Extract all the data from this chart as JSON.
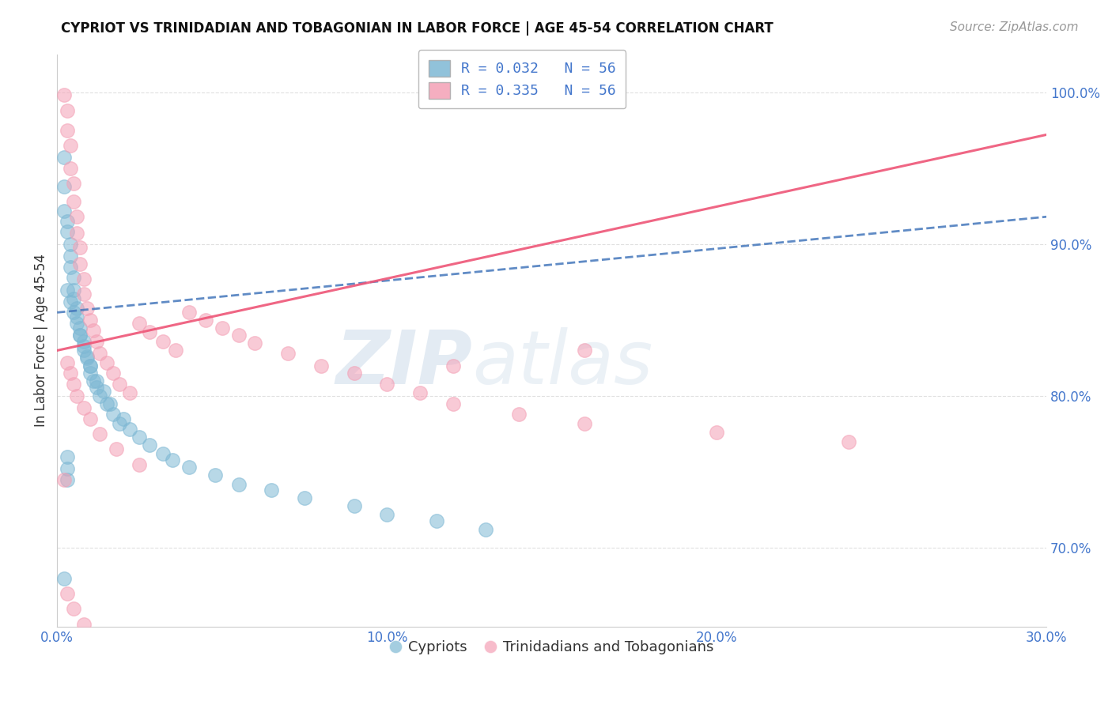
{
  "title": "CYPRIOT VS TRINIDADIAN AND TOBAGONIAN IN LABOR FORCE | AGE 45-54 CORRELATION CHART",
  "source": "Source: ZipAtlas.com",
  "ylabel": "In Labor Force | Age 45-54",
  "legend_entry1": "R = 0.032   N = 56",
  "legend_entry2": "R = 0.335   N = 56",
  "legend_label1": "Cypriots",
  "legend_label2": "Trinidadians and Tobagonians",
  "x_min": 0.0,
  "x_max": 0.3,
  "y_min": 0.648,
  "y_max": 1.025,
  "x_ticks": [
    0.0,
    0.1,
    0.2,
    0.3
  ],
  "x_tick_labels": [
    "0.0%",
    "10.0%",
    "20.0%",
    "30.0%"
  ],
  "y_ticks": [
    0.7,
    0.8,
    0.9,
    1.0
  ],
  "y_tick_labels": [
    "70.0%",
    "80.0%",
    "90.0%",
    "100.0%"
  ],
  "color_blue": "#7EB8D4",
  "color_pink": "#F4A0B5",
  "line_color_blue": "#4477BB",
  "line_color_pink": "#EE5577",
  "blue_line_x0": 0.0,
  "blue_line_y0": 0.855,
  "blue_line_x1": 0.3,
  "blue_line_y1": 0.918,
  "pink_line_x0": 0.0,
  "pink_line_y0": 0.83,
  "pink_line_x1": 0.3,
  "pink_line_y1": 0.972,
  "blue_x": [
    0.002,
    0.002,
    0.002,
    0.003,
    0.003,
    0.004,
    0.004,
    0.004,
    0.005,
    0.005,
    0.005,
    0.006,
    0.006,
    0.007,
    0.007,
    0.008,
    0.008,
    0.009,
    0.01,
    0.01,
    0.011,
    0.012,
    0.013,
    0.015,
    0.017,
    0.019,
    0.022,
    0.025,
    0.028,
    0.032,
    0.035,
    0.04,
    0.048,
    0.055,
    0.065,
    0.075,
    0.09,
    0.1,
    0.115,
    0.13,
    0.003,
    0.004,
    0.005,
    0.006,
    0.007,
    0.008,
    0.009,
    0.01,
    0.012,
    0.014,
    0.016,
    0.02,
    0.003,
    0.003,
    0.003,
    0.002
  ],
  "blue_y": [
    0.957,
    0.938,
    0.922,
    0.915,
    0.908,
    0.9,
    0.892,
    0.885,
    0.878,
    0.87,
    0.864,
    0.858,
    0.852,
    0.845,
    0.84,
    0.836,
    0.83,
    0.825,
    0.82,
    0.815,
    0.81,
    0.806,
    0.8,
    0.795,
    0.788,
    0.782,
    0.778,
    0.773,
    0.768,
    0.762,
    0.758,
    0.753,
    0.748,
    0.742,
    0.738,
    0.733,
    0.728,
    0.722,
    0.718,
    0.712,
    0.87,
    0.862,
    0.855,
    0.848,
    0.84,
    0.833,
    0.826,
    0.82,
    0.81,
    0.803,
    0.795,
    0.785,
    0.76,
    0.752,
    0.745,
    0.68
  ],
  "pink_x": [
    0.002,
    0.003,
    0.003,
    0.004,
    0.004,
    0.005,
    0.005,
    0.006,
    0.006,
    0.007,
    0.007,
    0.008,
    0.008,
    0.009,
    0.01,
    0.011,
    0.012,
    0.013,
    0.015,
    0.017,
    0.019,
    0.022,
    0.025,
    0.028,
    0.032,
    0.036,
    0.04,
    0.045,
    0.05,
    0.055,
    0.06,
    0.07,
    0.08,
    0.09,
    0.1,
    0.11,
    0.12,
    0.14,
    0.16,
    0.2,
    0.24,
    0.003,
    0.004,
    0.005,
    0.006,
    0.008,
    0.01,
    0.013,
    0.018,
    0.025,
    0.002,
    0.003,
    0.005,
    0.008,
    0.12,
    0.16
  ],
  "pink_y": [
    0.998,
    0.988,
    0.975,
    0.965,
    0.95,
    0.94,
    0.928,
    0.918,
    0.907,
    0.898,
    0.887,
    0.877,
    0.867,
    0.858,
    0.85,
    0.843,
    0.836,
    0.828,
    0.822,
    0.815,
    0.808,
    0.802,
    0.848,
    0.842,
    0.836,
    0.83,
    0.855,
    0.85,
    0.845,
    0.84,
    0.835,
    0.828,
    0.82,
    0.815,
    0.808,
    0.802,
    0.795,
    0.788,
    0.782,
    0.776,
    0.77,
    0.822,
    0.815,
    0.808,
    0.8,
    0.792,
    0.785,
    0.775,
    0.765,
    0.755,
    0.745,
    0.67,
    0.66,
    0.65,
    0.82,
    0.83
  ],
  "watermark_zip": "ZIP",
  "watermark_atlas": "atlas",
  "title_fontsize": 12,
  "tick_fontsize": 12,
  "label_fontsize": 12,
  "legend_fontsize": 13,
  "source_color": "#999999",
  "tick_color": "#4477CC",
  "text_color": "#333333",
  "grid_color": "#CCCCCC"
}
